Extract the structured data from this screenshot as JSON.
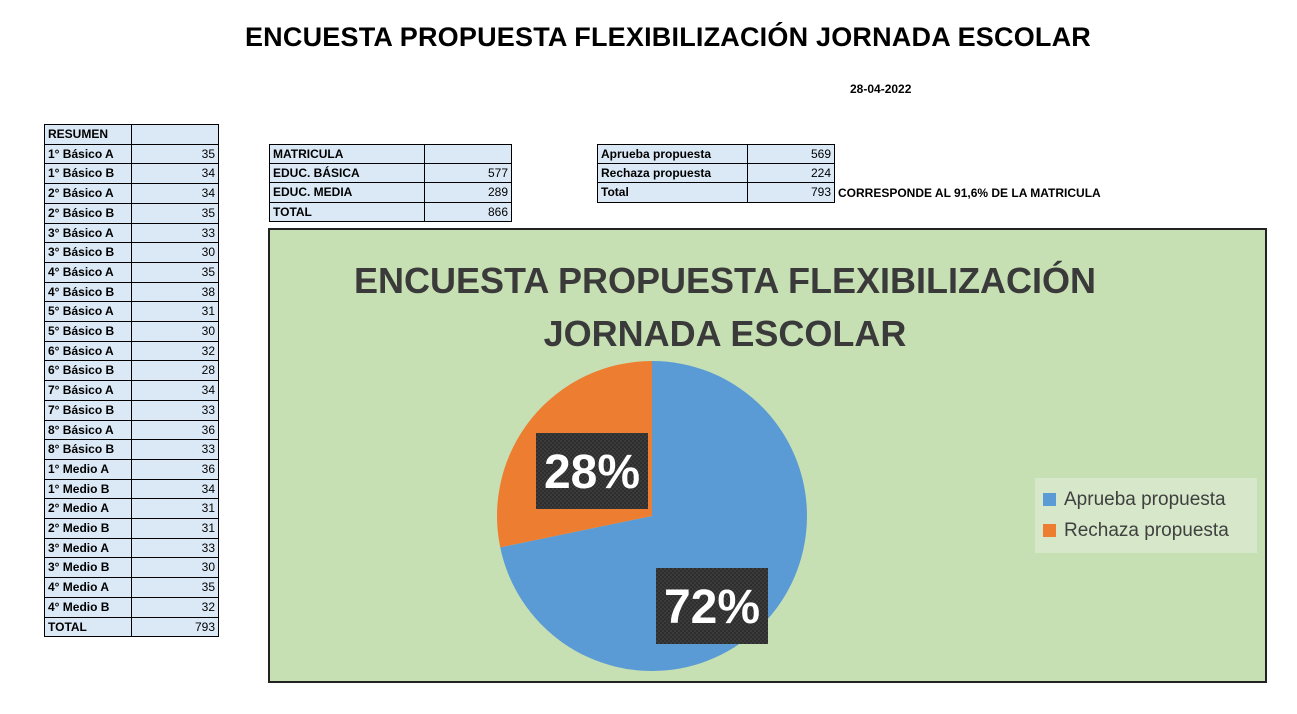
{
  "title": "ENCUESTA PROPUESTA FLEXIBILIZACIÓN JORNADA ESCOLAR",
  "date": "28-04-2022",
  "resumen": {
    "header": "RESUMEN",
    "rows": [
      {
        "label": "1° Básico A",
        "value": "35"
      },
      {
        "label": "1° Básico B",
        "value": "34"
      },
      {
        "label": "2° Básico A",
        "value": "34"
      },
      {
        "label": "2° Básico B",
        "value": "35"
      },
      {
        "label": "3° Básico A",
        "value": "33"
      },
      {
        "label": "3° Básico B",
        "value": "30"
      },
      {
        "label": "4° Básico A",
        "value": "35"
      },
      {
        "label": "4° Básico B",
        "value": "38"
      },
      {
        "label": "5° Básico A",
        "value": "31"
      },
      {
        "label": "5° Básico B",
        "value": "30"
      },
      {
        "label": "6° Básico A",
        "value": "32"
      },
      {
        "label": "6° Básico B",
        "value": "28"
      },
      {
        "label": "7° Básico A",
        "value": "34"
      },
      {
        "label": "7° Básico B",
        "value": "33"
      },
      {
        "label": "8° Básico A",
        "value": "36"
      },
      {
        "label": "8° Básico B",
        "value": "33"
      },
      {
        "label": "1° Medio A",
        "value": "36"
      },
      {
        "label": "1° Medio B",
        "value": "34"
      },
      {
        "label": "2° Medio A",
        "value": "31"
      },
      {
        "label": "2° Medio B",
        "value": "31"
      },
      {
        "label": "3° Medio A",
        "value": "33"
      },
      {
        "label": "3° Medio B",
        "value": "30"
      },
      {
        "label": "4° Medio A",
        "value": "35"
      },
      {
        "label": "4° Medio B",
        "value": "32"
      },
      {
        "label": "TOTAL",
        "value": "793"
      }
    ]
  },
  "matricula": {
    "header": "MATRICULA",
    "rows": [
      {
        "label": "EDUC. BÁSICA",
        "value": "577"
      },
      {
        "label": "EDUC. MEDIA",
        "value": "289"
      },
      {
        "label": "TOTAL",
        "value": "866"
      }
    ]
  },
  "votes": {
    "rows": [
      {
        "label": "Aprueba propuesta",
        "value": "569"
      },
      {
        "label": "Rechaza propuesta",
        "value": "224"
      },
      {
        "label": "Total",
        "value": "793"
      }
    ],
    "note": "CORRESPONDE AL 91,6% DE LA MATRICULA"
  },
  "chart_data": {
    "type": "pie",
    "title": "ENCUESTA PROPUESTA FLEXIBILIZACIÓN JORNADA ESCOLAR",
    "categories": [
      "Aprueba propuesta",
      "Rechaza propuesta"
    ],
    "values": [
      569,
      224
    ],
    "data_labels": [
      "72%",
      "28%"
    ],
    "colors": [
      "#5b9bd5",
      "#ed7d31"
    ],
    "legend": "right",
    "background": "#c6e0b4"
  }
}
